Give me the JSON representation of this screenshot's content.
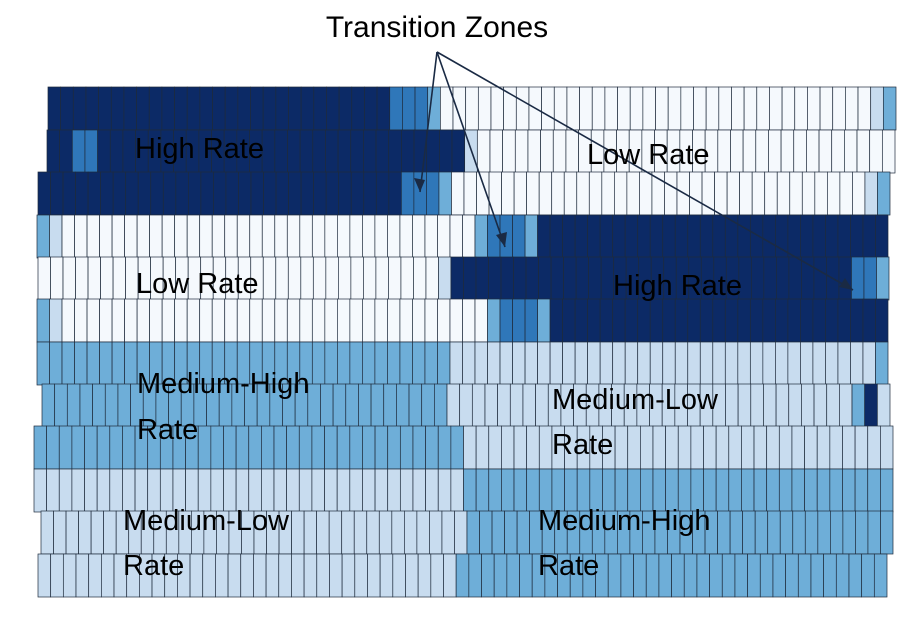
{
  "title": "Transition Zones",
  "colors": {
    "high": "#0c2a66",
    "transition": "#2f77b9",
    "medium_high": "#6eaed8",
    "medium_low": "#c8dcef",
    "low": "#f5f9fd",
    "cell_border": "#1e2b3c",
    "arrow": "#1a2a44"
  },
  "labels": {
    "row1_left": "High Rate",
    "row1_right": "Low Rate",
    "row4_left": "Low Rate",
    "row4_right": "High Rate",
    "mh_left_line1": "Medium-High",
    "mh_left_line2": "Rate",
    "ml_right_line1": "Medium-Low",
    "ml_right_line2": "Rate",
    "ml_left_line1": "Medium-Low",
    "ml_left_line2": "Rate",
    "mh_right_line1": "Medium-High",
    "mh_right_line2": "Rate"
  },
  "rows": [
    {
      "segments": [
        [
          "H",
          0.4
        ],
        [
          "T",
          0.044
        ],
        [
          "M",
          0.022
        ],
        [
          "L",
          0.5
        ],
        [
          "W",
          0.014
        ],
        [
          "M",
          0.02
        ]
      ]
    },
    {
      "segments": [
        [
          "H",
          0.035
        ],
        [
          "T",
          0.02
        ],
        [
          "H",
          0.435
        ],
        [
          "W",
          0.018
        ],
        [
          "L",
          0.492
        ]
      ]
    },
    {
      "segments": [
        [
          "H",
          0.42
        ],
        [
          "T",
          0.045
        ],
        [
          "M",
          0.015
        ],
        [
          "L",
          0.49
        ],
        [
          "W",
          0.015
        ],
        [
          "M",
          0.015
        ]
      ]
    },
    {
      "segments": [
        [
          "M",
          0.018
        ],
        [
          "W",
          0.018
        ],
        [
          "L",
          0.485
        ],
        [
          "M",
          0.015
        ],
        [
          "T",
          0.04
        ],
        [
          "M",
          0.01
        ],
        [
          "H",
          0.414
        ]
      ]
    },
    {
      "segments": [
        [
          "L",
          0.47
        ],
        [
          "W",
          0.015
        ],
        [
          "H",
          0.47
        ],
        [
          "T",
          0.027
        ],
        [
          "M",
          0.018
        ]
      ]
    },
    {
      "segments": [
        [
          "M",
          0.018
        ],
        [
          "W",
          0.017
        ],
        [
          "L",
          0.49
        ],
        [
          "M",
          0.015
        ],
        [
          "T",
          0.05
        ],
        [
          "M",
          0.015
        ],
        [
          "H",
          0.395
        ]
      ]
    },
    {
      "segments": [
        [
          "M",
          0.488
        ],
        [
          "W",
          0.496
        ],
        [
          "M",
          0.016
        ]
      ]
    },
    {
      "segments": [
        [
          "M",
          0.48
        ],
        [
          "W",
          0.472
        ],
        [
          "M",
          0.016
        ],
        [
          "H",
          0.018
        ],
        [
          "W",
          0.014
        ]
      ]
    },
    {
      "segments": [
        [
          "M",
          0.505
        ],
        [
          "W",
          0.495
        ]
      ]
    },
    {
      "segments": [
        [
          "W",
          0.498
        ],
        [
          "M",
          0.502
        ]
      ]
    },
    {
      "segments": [
        [
          "W",
          0.503
        ],
        [
          "M",
          0.497
        ]
      ]
    },
    {
      "segments": [
        [
          "W",
          0.49
        ],
        [
          "M",
          0.51
        ]
      ]
    }
  ]
}
